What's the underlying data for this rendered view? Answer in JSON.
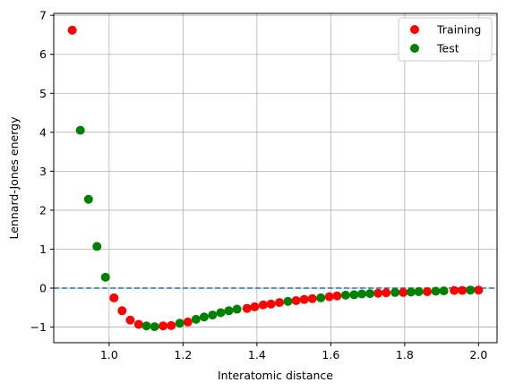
{
  "chart_data": {
    "type": "scatter",
    "title": "",
    "xlabel": "Interatomic distance",
    "ylabel": "Lennard-Jones energy",
    "xlim": [
      0.85,
      2.05
    ],
    "ylim": [
      -1.4,
      7.05
    ],
    "xticks": [
      1.0,
      1.2,
      1.4,
      1.6,
      1.8,
      2.0
    ],
    "xtick_labels": [
      "1.0",
      "1.2",
      "1.4",
      "1.6",
      "1.8",
      "2.0"
    ],
    "yticks": [
      -1,
      0,
      1,
      2,
      3,
      4,
      5,
      6,
      7
    ],
    "ytick_labels": [
      "−1",
      "0",
      "1",
      "2",
      "3",
      "4",
      "5",
      "6",
      "7"
    ],
    "grid": true,
    "legend_position": "upper right",
    "reference_line": {
      "y": 0,
      "style": "dashed",
      "color": "#1f77b4"
    },
    "series": [
      {
        "name": "Training",
        "color": "#ff0000",
        "x": [
          0.9,
          1.013,
          1.035,
          1.057,
          1.08,
          1.146,
          1.168,
          1.213,
          1.373,
          1.394,
          1.417,
          1.438,
          1.461,
          1.506,
          1.528,
          1.55,
          1.596,
          1.617,
          1.728,
          1.75,
          1.796,
          1.861,
          1.934,
          1.956,
          2.0
        ],
        "y": [
          6.62,
          -0.25,
          -0.58,
          -0.82,
          -0.93,
          -0.97,
          -0.96,
          -0.87,
          -0.52,
          -0.48,
          -0.43,
          -0.41,
          -0.37,
          -0.32,
          -0.29,
          -0.27,
          -0.22,
          -0.2,
          -0.13,
          -0.12,
          -0.11,
          -0.09,
          -0.06,
          -0.06,
          -0.05
        ]
      },
      {
        "name": "Test",
        "color": "#008000",
        "x": [
          0.922,
          0.944,
          0.967,
          0.99,
          1.101,
          1.123,
          1.191,
          1.235,
          1.257,
          1.28,
          1.302,
          1.324,
          1.346,
          1.484,
          1.573,
          1.64,
          1.663,
          1.684,
          1.706,
          1.774,
          1.817,
          1.838,
          1.884,
          1.906,
          1.978
        ],
        "y": [
          4.05,
          2.28,
          1.07,
          0.28,
          -0.97,
          -0.99,
          -0.9,
          -0.8,
          -0.74,
          -0.69,
          -0.63,
          -0.58,
          -0.54,
          -0.34,
          -0.25,
          -0.18,
          -0.17,
          -0.15,
          -0.14,
          -0.11,
          -0.1,
          -0.09,
          -0.08,
          -0.07,
          -0.05
        ]
      }
    ]
  }
}
